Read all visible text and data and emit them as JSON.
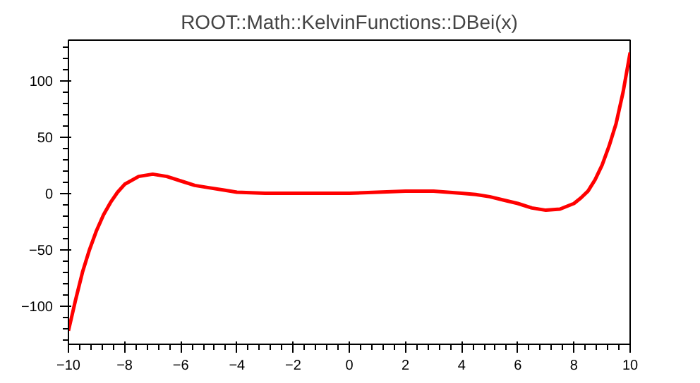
{
  "chart_data": {
    "type": "line",
    "title": "ROOT::Math::KelvinFunctions::DBei(x)",
    "x": [
      -10,
      -9.75,
      -9.5,
      -9.25,
      -9,
      -8.75,
      -8.5,
      -8.25,
      -8,
      -7.5,
      -7,
      -6.5,
      -6,
      -5.5,
      -5,
      -4.5,
      -4,
      -3,
      -2,
      -1,
      0,
      1,
      2,
      3,
      4,
      4.5,
      5,
      5.5,
      6,
      6.5,
      7,
      7.5,
      8,
      8.25,
      8.5,
      8.75,
      9,
      9.25,
      9.5,
      9.75,
      10
    ],
    "series": [
      {
        "color": "#ff0000",
        "values": [
          -122,
          -95,
          -70,
          -50,
          -33,
          -19,
          -8,
          1,
          8,
          15,
          17,
          15,
          11,
          7,
          5,
          3,
          1,
          0,
          0,
          0,
          0,
          1,
          2,
          2,
          0,
          -1,
          -3,
          -6,
          -9,
          -13,
          -15,
          -14,
          -9,
          -4,
          2,
          12,
          25,
          42,
          62,
          90,
          125
        ]
      }
    ],
    "xlim": [
      -10,
      10
    ],
    "ylim": [
      -134,
      136
    ],
    "xticks": [
      -10,
      -8,
      -6,
      -4,
      -2,
      0,
      2,
      4,
      6,
      8,
      10
    ],
    "yticks": [
      -100,
      -50,
      0,
      50,
      100
    ],
    "grid": false,
    "marker": "none",
    "line_style": "solid"
  }
}
